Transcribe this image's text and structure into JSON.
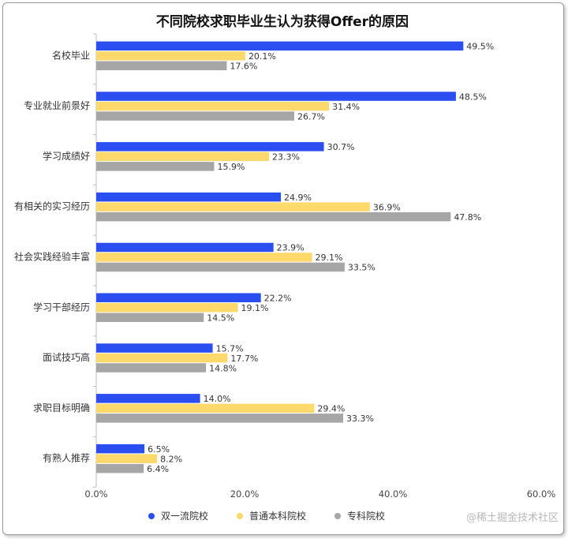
{
  "chart_data": {
    "type": "bar",
    "orientation": "horizontal",
    "title": "不同院校求职毕业生认为获得Offer的原因",
    "categories": [
      "名校毕业",
      "专业就业前景好",
      "学习成绩好",
      "有相关的实习经历",
      "社会实践经验丰富",
      "学习干部经历",
      "面试技巧高",
      "求职目标明确",
      "有熟人推荐"
    ],
    "series": [
      {
        "name": "双一流院校",
        "color": "#2a4ef0",
        "values": [
          49.5,
          48.5,
          30.7,
          24.9,
          23.9,
          22.2,
          15.7,
          14.0,
          6.5
        ]
      },
      {
        "name": "普通本科院校",
        "color": "#fdd86b",
        "values": [
          20.1,
          31.4,
          23.3,
          36.9,
          29.1,
          19.1,
          17.7,
          29.4,
          8.2
        ]
      },
      {
        "name": "专科院校",
        "color": "#a6a6a6",
        "values": [
          17.6,
          26.7,
          15.9,
          47.8,
          33.5,
          14.5,
          14.8,
          33.3,
          6.4
        ]
      }
    ],
    "xlim": [
      0,
      60
    ],
    "x_ticks": [
      "0.0%",
      "20.0%",
      "40.0%",
      "60.0%"
    ],
    "value_suffix": "%",
    "legend_position": "bottom",
    "grid": false
  },
  "watermark": "@稀土掘金技术社区"
}
